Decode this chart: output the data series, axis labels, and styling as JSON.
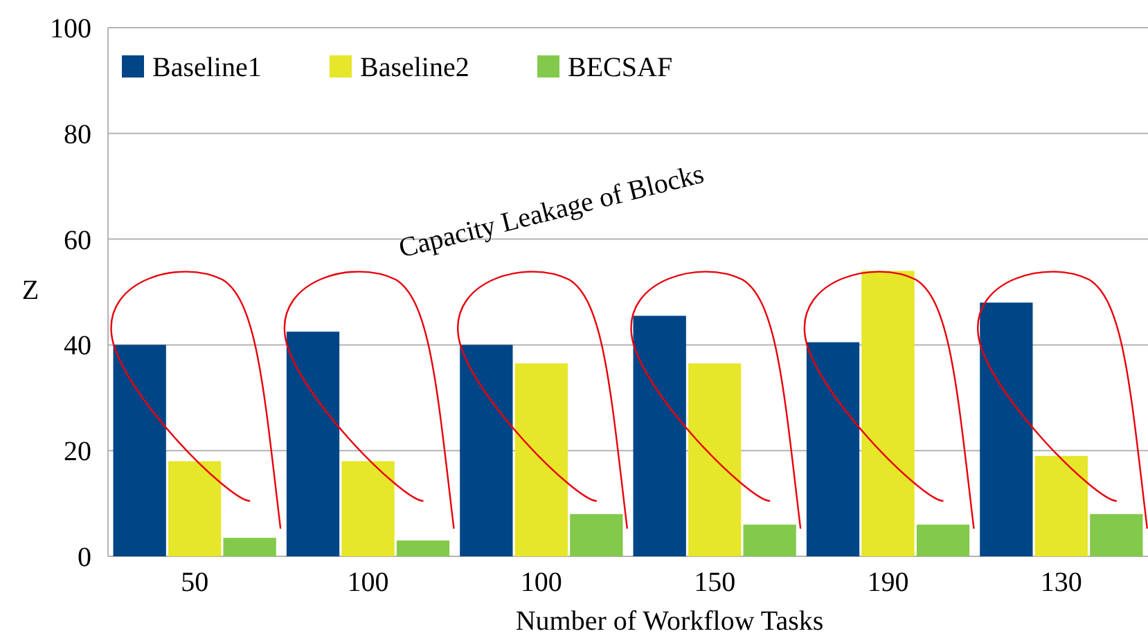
{
  "chart_data": {
    "type": "bar",
    "xlabel": "Number of Workflow Tasks",
    "ylabel": "Z",
    "categories": [
      "50",
      "100",
      "100",
      "150",
      "190",
      "130"
    ],
    "series": [
      {
        "name": "Baseline1",
        "color": "#004586",
        "values": [
          40,
          42.5,
          40,
          45.5,
          40.5,
          48
        ]
      },
      {
        "name": "Baseline2",
        "color": "#e6e62a",
        "values": [
          18,
          18,
          36.5,
          36.5,
          54,
          19
        ]
      },
      {
        "name": "BECSAF",
        "color": "#83ca4c",
        "values": [
          3.5,
          3,
          8,
          6,
          6,
          8
        ]
      }
    ],
    "ylim": [
      0,
      100
    ],
    "yticks": [
      0,
      20,
      40,
      60,
      80,
      100
    ],
    "grid": "y",
    "legend": "top left",
    "annotations": [
      "Capacity Leakage of Blocks"
    ]
  }
}
